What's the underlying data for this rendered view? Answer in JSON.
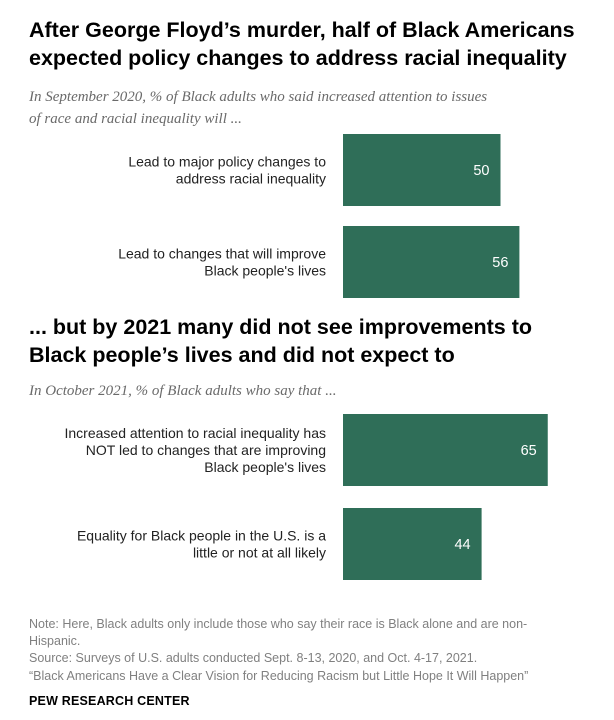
{
  "section1": {
    "title_lines": [
      "After George Floyd’s murder, half of Black Americans",
      "expected policy changes to address racial inequality"
    ],
    "subtitle_lines": [
      "In September 2020, % of Black adults who said increased attention to issues",
      "of race and racial inequality will ..."
    ]
  },
  "section2": {
    "title_lines": [
      "... but by 2021 many did not see improvements to",
      "Black people’s lives and did not expect to"
    ],
    "subtitle_lines": [
      "In October 2021, % of Black adults who say that ..."
    ]
  },
  "chart_data": [
    {
      "type": "bar",
      "orientation": "horizontal",
      "categories": [
        [
          "Lead to major policy changes to",
          "address racial inequality"
        ],
        [
          "Lead to changes that will improve",
          "Black people's lives"
        ]
      ],
      "values": [
        50,
        56
      ],
      "xlim": [
        0,
        100
      ],
      "color": "#2f6e58",
      "grid": false
    },
    {
      "type": "bar",
      "orientation": "horizontal",
      "categories": [
        [
          "Increased attention to racial inequality has",
          "NOT led to changes that are improving",
          "Black people's lives"
        ],
        [
          "Equality for Black people in the U.S. is a",
          "little or not at all likely"
        ]
      ],
      "values": [
        65,
        44
      ],
      "xlim": [
        0,
        100
      ],
      "color": "#2f6e58",
      "grid": false
    }
  ],
  "footer": {
    "note_lines": [
      "Note: Here, Black adults only include those who say their race is Black alone and are non-",
      "Hispanic.",
      "Source: Surveys of U.S. adults conducted Sept. 8-13, 2020, and Oct. 4-17, 2021.",
      "“Black Americans Have a Clear Vision for Reducing Racism but Little Hope It Will Happen”"
    ],
    "brand": "PEW RESEARCH CENTER"
  }
}
